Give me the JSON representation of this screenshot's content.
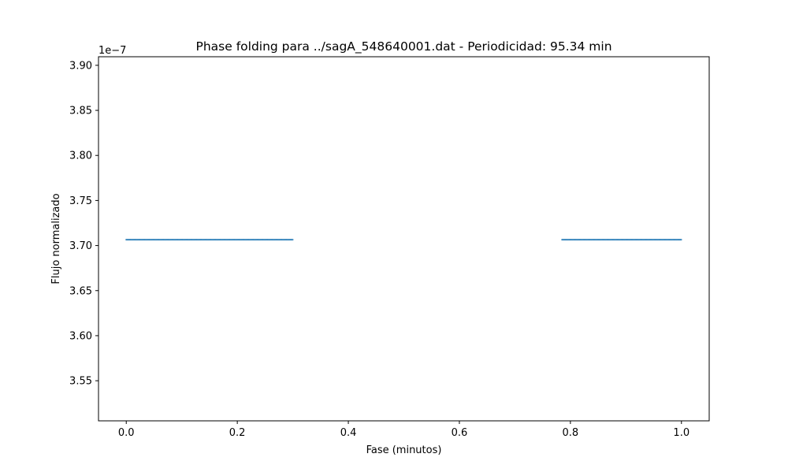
{
  "chart_data": {
    "type": "scatter",
    "title": "Phase folding para ../sagA_548640001.dat - Periodicidad: 95.34 min",
    "xlabel": "Fase (minutos)",
    "ylabel": "Flujo normalizado",
    "y_offset_label": "1e−7",
    "xlim": [
      -0.05,
      1.05
    ],
    "ylim": [
      3.5055,
      3.9095
    ],
    "x_ticks": [
      0.0,
      0.2,
      0.4,
      0.6,
      0.8,
      1.0
    ],
    "x_tick_labels": [
      "0.0",
      "0.2",
      "0.4",
      "0.6",
      "0.8",
      "1.0"
    ],
    "y_ticks": [
      3.55,
      3.6,
      3.65,
      3.7,
      3.75,
      3.8,
      3.85,
      3.9
    ],
    "y_tick_labels": [
      "3.55",
      "3.60",
      "3.65",
      "3.70",
      "3.75",
      "3.80",
      "3.85",
      "3.90"
    ],
    "grid": false,
    "series": [
      {
        "color": "#1f77b4",
        "x_ranges": [
          [
            0.0,
            0.3
          ],
          [
            0.785,
            1.0
          ]
        ],
        "y": 3.7065
      }
    ]
  }
}
